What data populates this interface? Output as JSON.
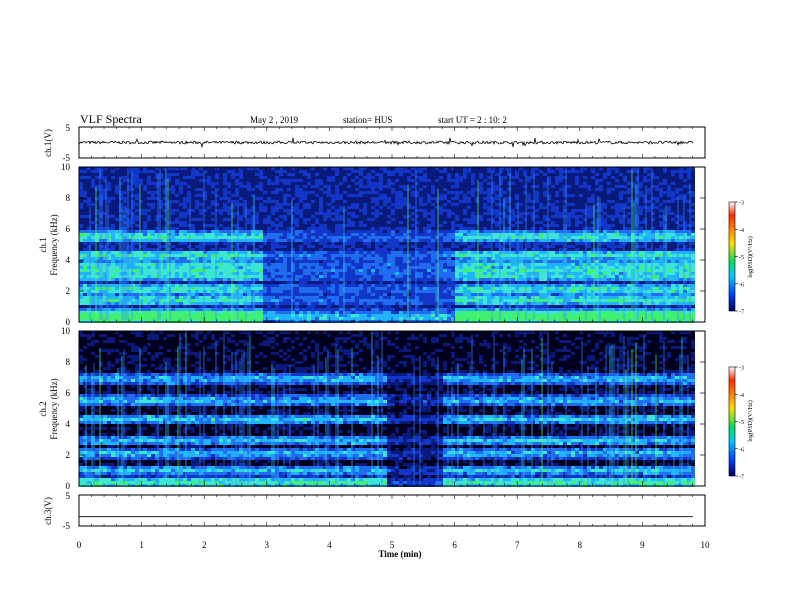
{
  "header": {
    "title": "VLF Spectra",
    "date": "May 2 , 2019",
    "station": "station= HUS",
    "start_time": "start UT = 2 : 10: 2"
  },
  "chart_data": [
    {
      "type": "line",
      "panel": "ch1-waveform",
      "ylabel": "ch.1(V)",
      "ylim": [
        -5,
        5
      ],
      "y_ticks": [
        "5",
        "-5"
      ],
      "xlim": [
        0,
        10
      ],
      "trace_level": 0
    },
    {
      "type": "heatmap",
      "panel": "ch1-spectrogram",
      "ylabel_top": "ch.1",
      "ylabel": "Frequency (kHz)",
      "ylim": [
        0,
        10
      ],
      "y_ticks": [
        "0",
        "2",
        "4",
        "6",
        "8",
        "10"
      ],
      "xlim": [
        0,
        10
      ],
      "data_end_min": 9.8,
      "emission_bands_khz": [
        0.3,
        0.6,
        1.5,
        2.2,
        3.1,
        3.7,
        4.4,
        5.6
      ],
      "quiet_interval_min": [
        2.9,
        6.0
      ],
      "colorbar": {
        "label": "log(PSD)(V²/Hz)",
        "range": [
          -7,
          -3
        ],
        "ticks": [
          "-3",
          "-4",
          "-5",
          "-6",
          "-7"
        ],
        "colors": [
          "#ffffff",
          "#ff2a00",
          "#ffe000",
          "#00e060",
          "#00c8ff",
          "#0040ff",
          "#000060"
        ]
      }
    },
    {
      "type": "heatmap",
      "panel": "ch2-spectrogram",
      "ylabel_top": "ch.2",
      "ylabel": "Frequency (kHz)",
      "ylim": [
        0,
        10
      ],
      "y_ticks": [
        "0",
        "2",
        "4",
        "6",
        "8",
        "10"
      ],
      "xlim": [
        0,
        10
      ],
      "data_end_min": 9.8,
      "emission_bands_khz": [
        0.3,
        1.1,
        2.2,
        3.0,
        4.4,
        5.6,
        7.0
      ],
      "quiet_interval_min": [
        4.9,
        5.8
      ],
      "colorbar": {
        "label": "log(PSD)(V²/Hz)",
        "range": [
          -7,
          -3
        ],
        "ticks": [
          "-3",
          "-4",
          "-5",
          "-6",
          "-7"
        ],
        "colors": [
          "#ffffff",
          "#ff2a00",
          "#ffe000",
          "#00e060",
          "#00c8ff",
          "#0040ff",
          "#000060"
        ]
      }
    },
    {
      "type": "line",
      "panel": "ch3-waveform",
      "ylabel": "ch.3(V)",
      "ylim": [
        -5,
        5
      ],
      "y_ticks": [
        "5",
        "-5"
      ],
      "xlim": [
        0,
        10
      ],
      "trace_level": -2
    }
  ],
  "x_axis": {
    "label": "Time (min)",
    "ticks": [
      "0",
      "1",
      "2",
      "3",
      "4",
      "5",
      "6",
      "7",
      "8",
      "9",
      "10"
    ]
  }
}
